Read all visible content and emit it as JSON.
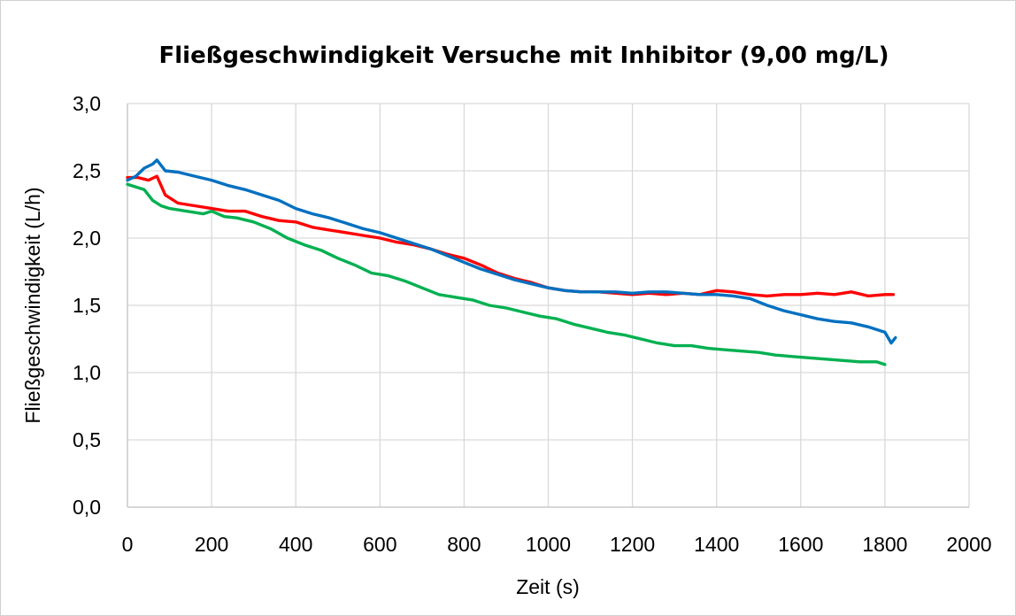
{
  "chart_data": {
    "type": "line",
    "title": "Fließgeschwindigkeit Versuche mit Inhibitor (9,00 mg/L)",
    "xlabel": "Zeit (s)",
    "ylabel": "Fließgeschwindigkeit (L/h)",
    "xlim": [
      0,
      2000
    ],
    "ylim": [
      0,
      3
    ],
    "x_ticks": [
      0,
      200,
      400,
      600,
      800,
      1000,
      1200,
      1400,
      1600,
      1800,
      2000
    ],
    "y_ticks": [
      0,
      0.5,
      1,
      1.5,
      2,
      2.5,
      3
    ],
    "x_tick_labels": [
      "0",
      "200",
      "400",
      "600",
      "800",
      "1000",
      "1200",
      "1400",
      "1600",
      "1800",
      "2000"
    ],
    "y_tick_labels": [
      "0,0",
      "0,5",
      "1,0",
      "1,5",
      "2,0",
      "2,5",
      "3,0"
    ],
    "grid": true,
    "legend": "none",
    "series": [
      {
        "color": "#ff0000",
        "x": [
          0,
          25,
          50,
          70,
          90,
          120,
          160,
          200,
          240,
          280,
          320,
          360,
          400,
          440,
          480,
          520,
          560,
          600,
          640,
          680,
          720,
          760,
          800,
          840,
          880,
          920,
          960,
          1000,
          1040,
          1080,
          1120,
          1160,
          1200,
          1240,
          1280,
          1320,
          1360,
          1400,
          1440,
          1480,
          1520,
          1560,
          1600,
          1640,
          1680,
          1720,
          1760,
          1800,
          1820
        ],
        "y": [
          2.45,
          2.45,
          2.43,
          2.46,
          2.32,
          2.26,
          2.24,
          2.22,
          2.2,
          2.2,
          2.16,
          2.13,
          2.12,
          2.08,
          2.06,
          2.04,
          2.02,
          2.0,
          1.97,
          1.95,
          1.92,
          1.88,
          1.85,
          1.8,
          1.74,
          1.7,
          1.67,
          1.63,
          1.61,
          1.6,
          1.6,
          1.59,
          1.58,
          1.59,
          1.58,
          1.59,
          1.58,
          1.61,
          1.6,
          1.58,
          1.57,
          1.58,
          1.58,
          1.59,
          1.58,
          1.6,
          1.57,
          1.58,
          1.58
        ]
      },
      {
        "color": "#0070c0",
        "x": [
          0,
          20,
          40,
          60,
          70,
          90,
          120,
          160,
          200,
          240,
          280,
          320,
          360,
          400,
          440,
          480,
          520,
          560,
          600,
          640,
          680,
          720,
          760,
          800,
          840,
          880,
          920,
          960,
          1000,
          1040,
          1080,
          1120,
          1160,
          1200,
          1240,
          1280,
          1320,
          1360,
          1400,
          1440,
          1480,
          1520,
          1560,
          1600,
          1640,
          1680,
          1720,
          1760,
          1800,
          1815,
          1825
        ],
        "y": [
          2.43,
          2.46,
          2.52,
          2.55,
          2.58,
          2.5,
          2.49,
          2.46,
          2.43,
          2.39,
          2.36,
          2.32,
          2.28,
          2.22,
          2.18,
          2.15,
          2.11,
          2.07,
          2.04,
          2.0,
          1.96,
          1.92,
          1.87,
          1.82,
          1.77,
          1.73,
          1.69,
          1.66,
          1.63,
          1.61,
          1.6,
          1.6,
          1.6,
          1.59,
          1.6,
          1.6,
          1.59,
          1.58,
          1.58,
          1.57,
          1.55,
          1.5,
          1.46,
          1.43,
          1.4,
          1.38,
          1.37,
          1.34,
          1.3,
          1.22,
          1.26
        ]
      },
      {
        "color": "#00b050",
        "x": [
          0,
          20,
          40,
          60,
          80,
          100,
          140,
          180,
          200,
          230,
          260,
          300,
          340,
          380,
          420,
          460,
          500,
          540,
          580,
          620,
          660,
          700,
          740,
          780,
          820,
          860,
          900,
          940,
          980,
          1020,
          1060,
          1100,
          1140,
          1180,
          1220,
          1260,
          1300,
          1340,
          1380,
          1420,
          1460,
          1500,
          1540,
          1580,
          1620,
          1660,
          1700,
          1740,
          1780,
          1800
        ],
        "y": [
          2.4,
          2.38,
          2.36,
          2.28,
          2.24,
          2.22,
          2.2,
          2.18,
          2.2,
          2.16,
          2.15,
          2.12,
          2.07,
          2.0,
          1.95,
          1.91,
          1.85,
          1.8,
          1.74,
          1.72,
          1.68,
          1.63,
          1.58,
          1.56,
          1.54,
          1.5,
          1.48,
          1.45,
          1.42,
          1.4,
          1.36,
          1.33,
          1.3,
          1.28,
          1.25,
          1.22,
          1.2,
          1.2,
          1.18,
          1.17,
          1.16,
          1.15,
          1.13,
          1.12,
          1.11,
          1.1,
          1.09,
          1.08,
          1.08,
          1.06
        ]
      }
    ]
  }
}
